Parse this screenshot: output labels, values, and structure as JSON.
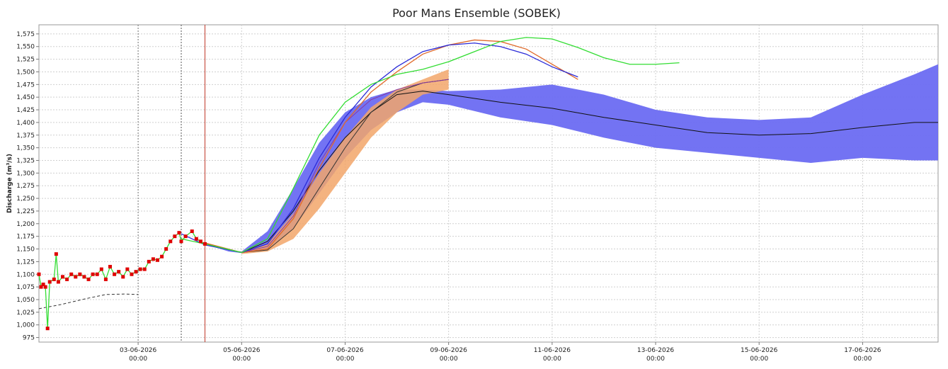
{
  "chart_data": {
    "type": "line",
    "title": "Poor Mans Ensemble (SOBEK)",
    "y_label": "Discharge (m³/s)",
    "xlim": [
      "01-06-2026 02:00",
      "18-06-2026 11:00"
    ],
    "xticks": [
      "03-06-2026 00:00",
      "05-06-2026 00:00",
      "07-06-2026 00:00",
      "09-06-2026 00:00",
      "11-06-2026 00:00",
      "13-06-2026 00:00",
      "15-06-2026 00:00",
      "17-06-2026 00:00"
    ],
    "ylim": [
      966,
      1593
    ],
    "yticks": [
      975,
      {
        "value": 1000,
        "label": "1,000"
      },
      {
        "value": 1025,
        "label": "1,025"
      },
      {
        "value": 1050,
        "label": "1,050"
      },
      {
        "value": 1075,
        "label": "1,075"
      },
      {
        "value": 1100,
        "label": "1,100"
      },
      {
        "value": 1125,
        "label": "1,125"
      },
      {
        "value": 1150,
        "label": "1,150"
      },
      {
        "value": 1175,
        "label": "1,175"
      },
      {
        "value": 1200,
        "label": "1,200"
      },
      {
        "value": 1225,
        "label": "1,225"
      },
      {
        "value": 1250,
        "label": "1,250"
      },
      {
        "value": 1275,
        "label": "1,275"
      },
      {
        "value": 1300,
        "label": "1,300"
      },
      {
        "value": 1325,
        "label": "1,325"
      },
      {
        "value": 1350,
        "label": "1,350"
      },
      {
        "value": 1375,
        "label": "1,375"
      },
      {
        "value": 1400,
        "label": "1,400"
      },
      {
        "value": 1425,
        "label": "1,425"
      },
      {
        "value": 1450,
        "label": "1,450"
      },
      {
        "value": 1475,
        "label": "1,475"
      },
      {
        "value": 1500,
        "label": "1,500"
      },
      {
        "value": 1525,
        "label": "1,525"
      },
      {
        "value": 1550,
        "label": "1,550"
      },
      {
        "value": 1575,
        "label": "1,575"
      }
    ],
    "grid": true,
    "vlines": [
      {
        "x": "03-06-2026 00:00",
        "color": "#777777",
        "dash": true
      },
      {
        "x": "03-06-2026 20:00",
        "color": "#555555",
        "dash": true
      },
      {
        "x": "04-06-2026 07:00",
        "color": "#c0392b",
        "dash": false
      }
    ],
    "bands": [
      {
        "color": "#6b6bf2",
        "opacity": 0.95,
        "x": [
          "04-06-2026 07:00",
          "04-06-2026 18:00",
          "05-06-2026 00:00",
          "05-06-2026 12:00",
          "06-06-2026 00:00",
          "06-06-2026 12:00",
          "07-06-2026 00:00",
          "07-06-2026 12:00",
          "08-06-2026 00:00",
          "08-06-2026 12:00",
          "09-06-2026 00:00",
          "10-06-2026 00:00",
          "11-06-2026 00:00",
          "12-06-2026 00:00",
          "13-06-2026 00:00",
          "14-06-2026 00:00",
          "15-06-2026 00:00",
          "16-06-2026 00:00",
          "17-06-2026 00:00",
          "18-06-2026 00:00",
          "18-06-2026 11:00"
        ],
        "lower": [
          1160,
          1145,
          1142,
          1150,
          1190,
          1260,
          1330,
          1385,
          1420,
          1440,
          1435,
          1410,
          1395,
          1370,
          1350,
          1340,
          1330,
          1320,
          1330,
          1325,
          1325
        ],
        "upper": [
          1162,
          1148,
          1145,
          1185,
          1270,
          1360,
          1420,
          1450,
          1465,
          1465,
          1462,
          1465,
          1475,
          1455,
          1425,
          1410,
          1405,
          1410,
          1455,
          1495,
          1515
        ]
      },
      {
        "color": "#f2a66a",
        "opacity": 0.85,
        "x": [
          "05-06-2026 00:00",
          "05-06-2026 12:00",
          "06-06-2026 00:00",
          "06-06-2026 12:00",
          "07-06-2026 00:00",
          "07-06-2026 12:00",
          "08-06-2026 00:00",
          "08-06-2026 12:00",
          "09-06-2026 00:00"
        ],
        "lower": [
          1140,
          1145,
          1170,
          1230,
          1300,
          1370,
          1420,
          1455,
          1465
        ],
        "upper": [
          1145,
          1160,
          1220,
          1300,
          1370,
          1430,
          1465,
          1485,
          1505
        ]
      }
    ],
    "series": [
      {
        "color": "#111111",
        "width": 1,
        "x": [
          "04-06-2026 07:00",
          "05-06-2026 00:00",
          "05-06-2026 12:00",
          "06-06-2026 00:00",
          "06-06-2026 12:00",
          "07-06-2026 00:00",
          "07-06-2026 12:00",
          "08-06-2026 00:00",
          "08-06-2026 12:00",
          "09-06-2026 00:00",
          "10-06-2026 00:00",
          "11-06-2026 00:00",
          "12-06-2026 00:00",
          "13-06-2026 00:00",
          "14-06-2026 00:00",
          "15-06-2026 00:00",
          "16-06-2026 00:00",
          "17-06-2026 00:00",
          "18-06-2026 00:00",
          "18-06-2026 11:00"
        ],
        "values": [
          1161,
          1143,
          1165,
          1225,
          1305,
          1370,
          1420,
          1455,
          1462,
          1455,
          1440,
          1428,
          1410,
          1395,
          1380,
          1375,
          1378,
          1390,
          1400,
          1400
        ]
      },
      {
        "color": "#333333",
        "width": 1,
        "x": [
          "05-06-2026 00:00",
          "05-06-2026 12:00",
          "06-06-2026 00:00",
          "06-06-2026 12:00",
          "07-06-2026 00:00",
          "07-06-2026 12:00",
          "08-06-2026 00:00",
          "08-06-2026 12:00",
          "09-06-2026 00:00"
        ],
        "values": [
          1143,
          1148,
          1190,
          1270,
          1350,
          1420,
          1460,
          1478,
          1485
        ]
      },
      {
        "color": "#8a3aa0",
        "width": 1,
        "x": [
          "05-06-2026 00:00",
          "05-06-2026 12:00",
          "06-06-2026 00:00",
          "06-06-2026 12:00",
          "07-06-2026 00:00",
          "07-06-2026 12:00",
          "08-06-2026 00:00",
          "08-06-2026 12:00",
          "09-06-2026 00:00"
        ],
        "values": [
          1143,
          1155,
          1215,
          1320,
          1400,
          1445,
          1465,
          1478,
          1485
        ]
      },
      {
        "color": "#e06a2a",
        "width": 1.3,
        "x": [
          "04-06-2026 07:00",
          "05-06-2026 00:00",
          "05-06-2026 12:00",
          "06-06-2026 00:00",
          "06-06-2026 12:00",
          "07-06-2026 00:00",
          "07-06-2026 12:00",
          "08-06-2026 00:00",
          "08-06-2026 12:00",
          "09-06-2026 00:00",
          "09-06-2026 12:00",
          "10-06-2026 00:00",
          "10-06-2026 12:00",
          "11-06-2026 00:00",
          "11-06-2026 12:00"
        ],
        "values": [
          1162,
          1143,
          1150,
          1210,
          1310,
          1400,
          1460,
          1500,
          1535,
          1553,
          1563,
          1560,
          1545,
          1515,
          1485
        ]
      },
      {
        "color": "#2b2bd8",
        "width": 1.3,
        "x": [
          "03-06-2026 20:00",
          "04-06-2026 07:00",
          "05-06-2026 00:00",
          "05-06-2026 12:00",
          "06-06-2026 00:00",
          "06-06-2026 12:00",
          "07-06-2026 00:00",
          "07-06-2026 12:00",
          "08-06-2026 00:00",
          "08-06-2026 12:00",
          "09-06-2026 00:00",
          "09-06-2026 12:00",
          "10-06-2026 00:00",
          "10-06-2026 12:00",
          "11-06-2026 00:00",
          "11-06-2026 12:00"
        ],
        "values": [
          1180,
          1158,
          1143,
          1160,
          1230,
          1330,
          1410,
          1470,
          1510,
          1540,
          1553,
          1557,
          1550,
          1535,
          1510,
          1490
        ]
      },
      {
        "color": "#33dd33",
        "width": 1.3,
        "x": [
          "03-06-2026 20:00",
          "04-06-2026 07:00",
          "05-06-2026 00:00",
          "05-06-2026 12:00",
          "06-06-2026 00:00",
          "06-06-2026 12:00",
          "07-06-2026 00:00",
          "07-06-2026 12:00",
          "08-06-2026 00:00",
          "08-06-2026 12:00",
          "09-06-2026 00:00",
          "09-06-2026 12:00",
          "10-06-2026 00:00",
          "10-06-2026 12:00",
          "11-06-2026 00:00",
          "11-06-2026 12:00",
          "12-06-2026 00:00",
          "12-06-2026 12:00",
          "13-06-2026 00:00",
          "13-06-2026 11:00"
        ],
        "values": [
          1170,
          1160,
          1143,
          1170,
          1270,
          1375,
          1440,
          1475,
          1495,
          1505,
          1520,
          1540,
          1560,
          1568,
          1565,
          1548,
          1528,
          1515,
          1515,
          1518
        ]
      },
      {
        "color": "#333333",
        "width": 1,
        "dash": true,
        "x": [
          "01-06-2026 02:00",
          "01-06-2026 12:00",
          "02-06-2026 00:00",
          "02-06-2026 09:00",
          "02-06-2026 18:00",
          "03-06-2026 00:00"
        ],
        "values": [
          1032,
          1040,
          1052,
          1060,
          1061,
          1060
        ]
      },
      {
        "color": "#33dd33",
        "width": 1.3,
        "marker": "square",
        "marker_color": "#e00000",
        "x": [
          "01-06-2026 02:00",
          "01-06-2026 03:00",
          "01-06-2026 04:00",
          "01-06-2026 05:00",
          "01-06-2026 06:00",
          "01-06-2026 07:00",
          "01-06-2026 09:00",
          "01-06-2026 10:00",
          "01-06-2026 11:00",
          "01-06-2026 13:00",
          "01-06-2026 15:00",
          "01-06-2026 17:00",
          "01-06-2026 19:00",
          "01-06-2026 21:00",
          "01-06-2026 23:00",
          "02-06-2026 01:00",
          "02-06-2026 03:00",
          "02-06-2026 05:00",
          "02-06-2026 07:00",
          "02-06-2026 09:00",
          "02-06-2026 11:00",
          "02-06-2026 13:00",
          "02-06-2026 15:00",
          "02-06-2026 17:00",
          "02-06-2026 19:00",
          "02-06-2026 21:00",
          "02-06-2026 23:00",
          "03-06-2026 01:00",
          "03-06-2026 03:00",
          "03-06-2026 05:00",
          "03-06-2026 07:00",
          "03-06-2026 09:00",
          "03-06-2026 11:00",
          "03-06-2026 13:00",
          "03-06-2026 15:00",
          "03-06-2026 17:00",
          "03-06-2026 19:00",
          "03-06-2026 20:00",
          "03-06-2026 22:00",
          "04-06-2026 01:00",
          "04-06-2026 03:00",
          "04-06-2026 05:00",
          "04-06-2026 07:00"
        ],
        "values": [
          1100,
          1075,
          1080,
          1075,
          993,
          1085,
          1090,
          1140,
          1085,
          1095,
          1090,
          1100,
          1095,
          1100,
          1095,
          1090,
          1100,
          1100,
          1110,
          1090,
          1115,
          1100,
          1105,
          1095,
          1110,
          1100,
          1105,
          1110,
          1110,
          1125,
          1130,
          1128,
          1135,
          1150,
          1165,
          1175,
          1182,
          1165,
          1175,
          1185,
          1170,
          1165,
          1160
        ]
      }
    ]
  }
}
